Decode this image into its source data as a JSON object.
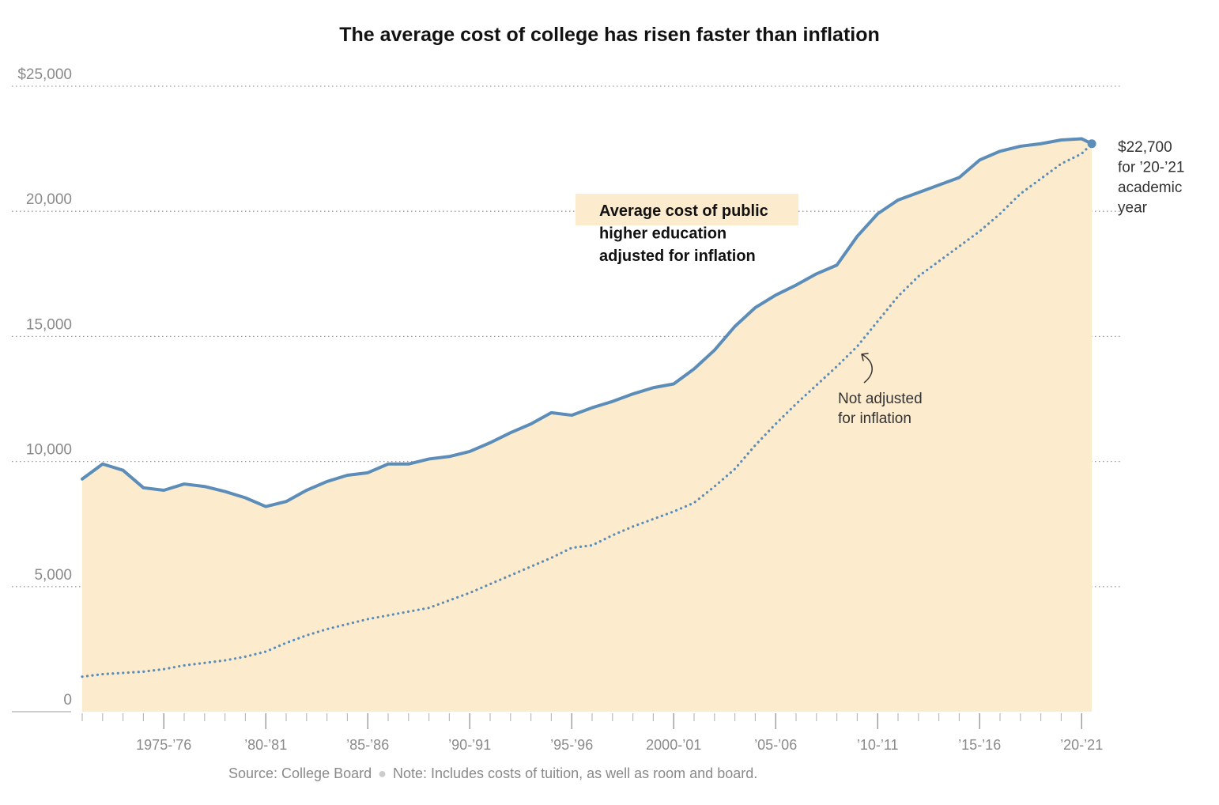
{
  "chart_data": {
    "type": "area",
    "title": "The average cost of college has risen faster than inflation",
    "xlabel": "",
    "ylabel": "",
    "ylim": [
      0,
      25000
    ],
    "y_ticks": [
      "$25,000",
      "20,000",
      "15,000",
      "10,000",
      "5,000",
      "0"
    ],
    "y_tick_values": [
      25000,
      20000,
      15000,
      10000,
      5000,
      0
    ],
    "x_tick_labels": [
      "1975-’76",
      "’80-’81",
      "’85-’86",
      "’90-’91",
      "’95-’96",
      "2000-’01",
      "’05-’06",
      "’10-’11",
      "’15-’16",
      "’20-’21"
    ],
    "x_tick_years": [
      1975,
      1980,
      1985,
      1990,
      1995,
      2000,
      2005,
      2010,
      2015,
      2020
    ],
    "x": [
      1971,
      1972,
      1973,
      1974,
      1975,
      1976,
      1977,
      1978,
      1979,
      1980,
      1981,
      1982,
      1983,
      1984,
      1985,
      1986,
      1987,
      1988,
      1989,
      1990,
      1991,
      1992,
      1993,
      1994,
      1995,
      1996,
      1997,
      1998,
      1999,
      2000,
      2001,
      2002,
      2003,
      2004,
      2005,
      2006,
      2007,
      2008,
      2009,
      2010,
      2011,
      2012,
      2013,
      2014,
      2015,
      2016,
      2017,
      2018,
      2019,
      2020
    ],
    "series": [
      {
        "name": "Average cost of public higher education adjusted for inflation",
        "style": "solid",
        "color": "#5b8db8",
        "values": [
          9300,
          9900,
          9650,
          8950,
          8850,
          9100,
          9000,
          8800,
          8550,
          8200,
          8400,
          8850,
          9200,
          9450,
          9550,
          9900,
          9900,
          10100,
          10200,
          10400,
          10750,
          11150,
          11500,
          11950,
          11850,
          12150,
          12400,
          12700,
          12950,
          13100,
          13700,
          14450,
          15400,
          16150,
          16650,
          17050,
          17500,
          17850,
          19000,
          19900,
          20450,
          20750,
          21050,
          21350,
          22050,
          22400,
          22600,
          22700,
          22850,
          22900
        ]
      },
      {
        "name": "Not adjusted for inflation",
        "style": "dotted",
        "color": "#5b8db8",
        "values": [
          1400,
          1500,
          1550,
          1600,
          1700,
          1850,
          1950,
          2050,
          2200,
          2400,
          2750,
          3050,
          3300,
          3500,
          3700,
          3850,
          4000,
          4150,
          4450,
          4750,
          5100,
          5450,
          5800,
          6150,
          6550,
          6650,
          7050,
          7400,
          7700,
          8000,
          8350,
          9000,
          9700,
          10650,
          11500,
          12300,
          13050,
          13800,
          14600,
          15600,
          16600,
          17400,
          18000,
          18600,
          19200,
          19900,
          20700,
          21300,
          21900,
          22300
        ]
      }
    ],
    "end_point": {
      "x": 2020.5,
      "value": 22700
    },
    "fill_color": "#fdebcd",
    "grid": "dotted horizontal",
    "annotations": {
      "adjusted_label": [
        "Average cost of public",
        "higher education",
        "adjusted for inflation"
      ],
      "not_adjusted_label": [
        "Not adjusted",
        "for inflation"
      ],
      "end_label": [
        "$22,700",
        "for ’20-’21",
        "academic",
        "year"
      ]
    },
    "source": "Source: College Board",
    "note": "Note: Includes costs of tuition, as well as room and board."
  }
}
